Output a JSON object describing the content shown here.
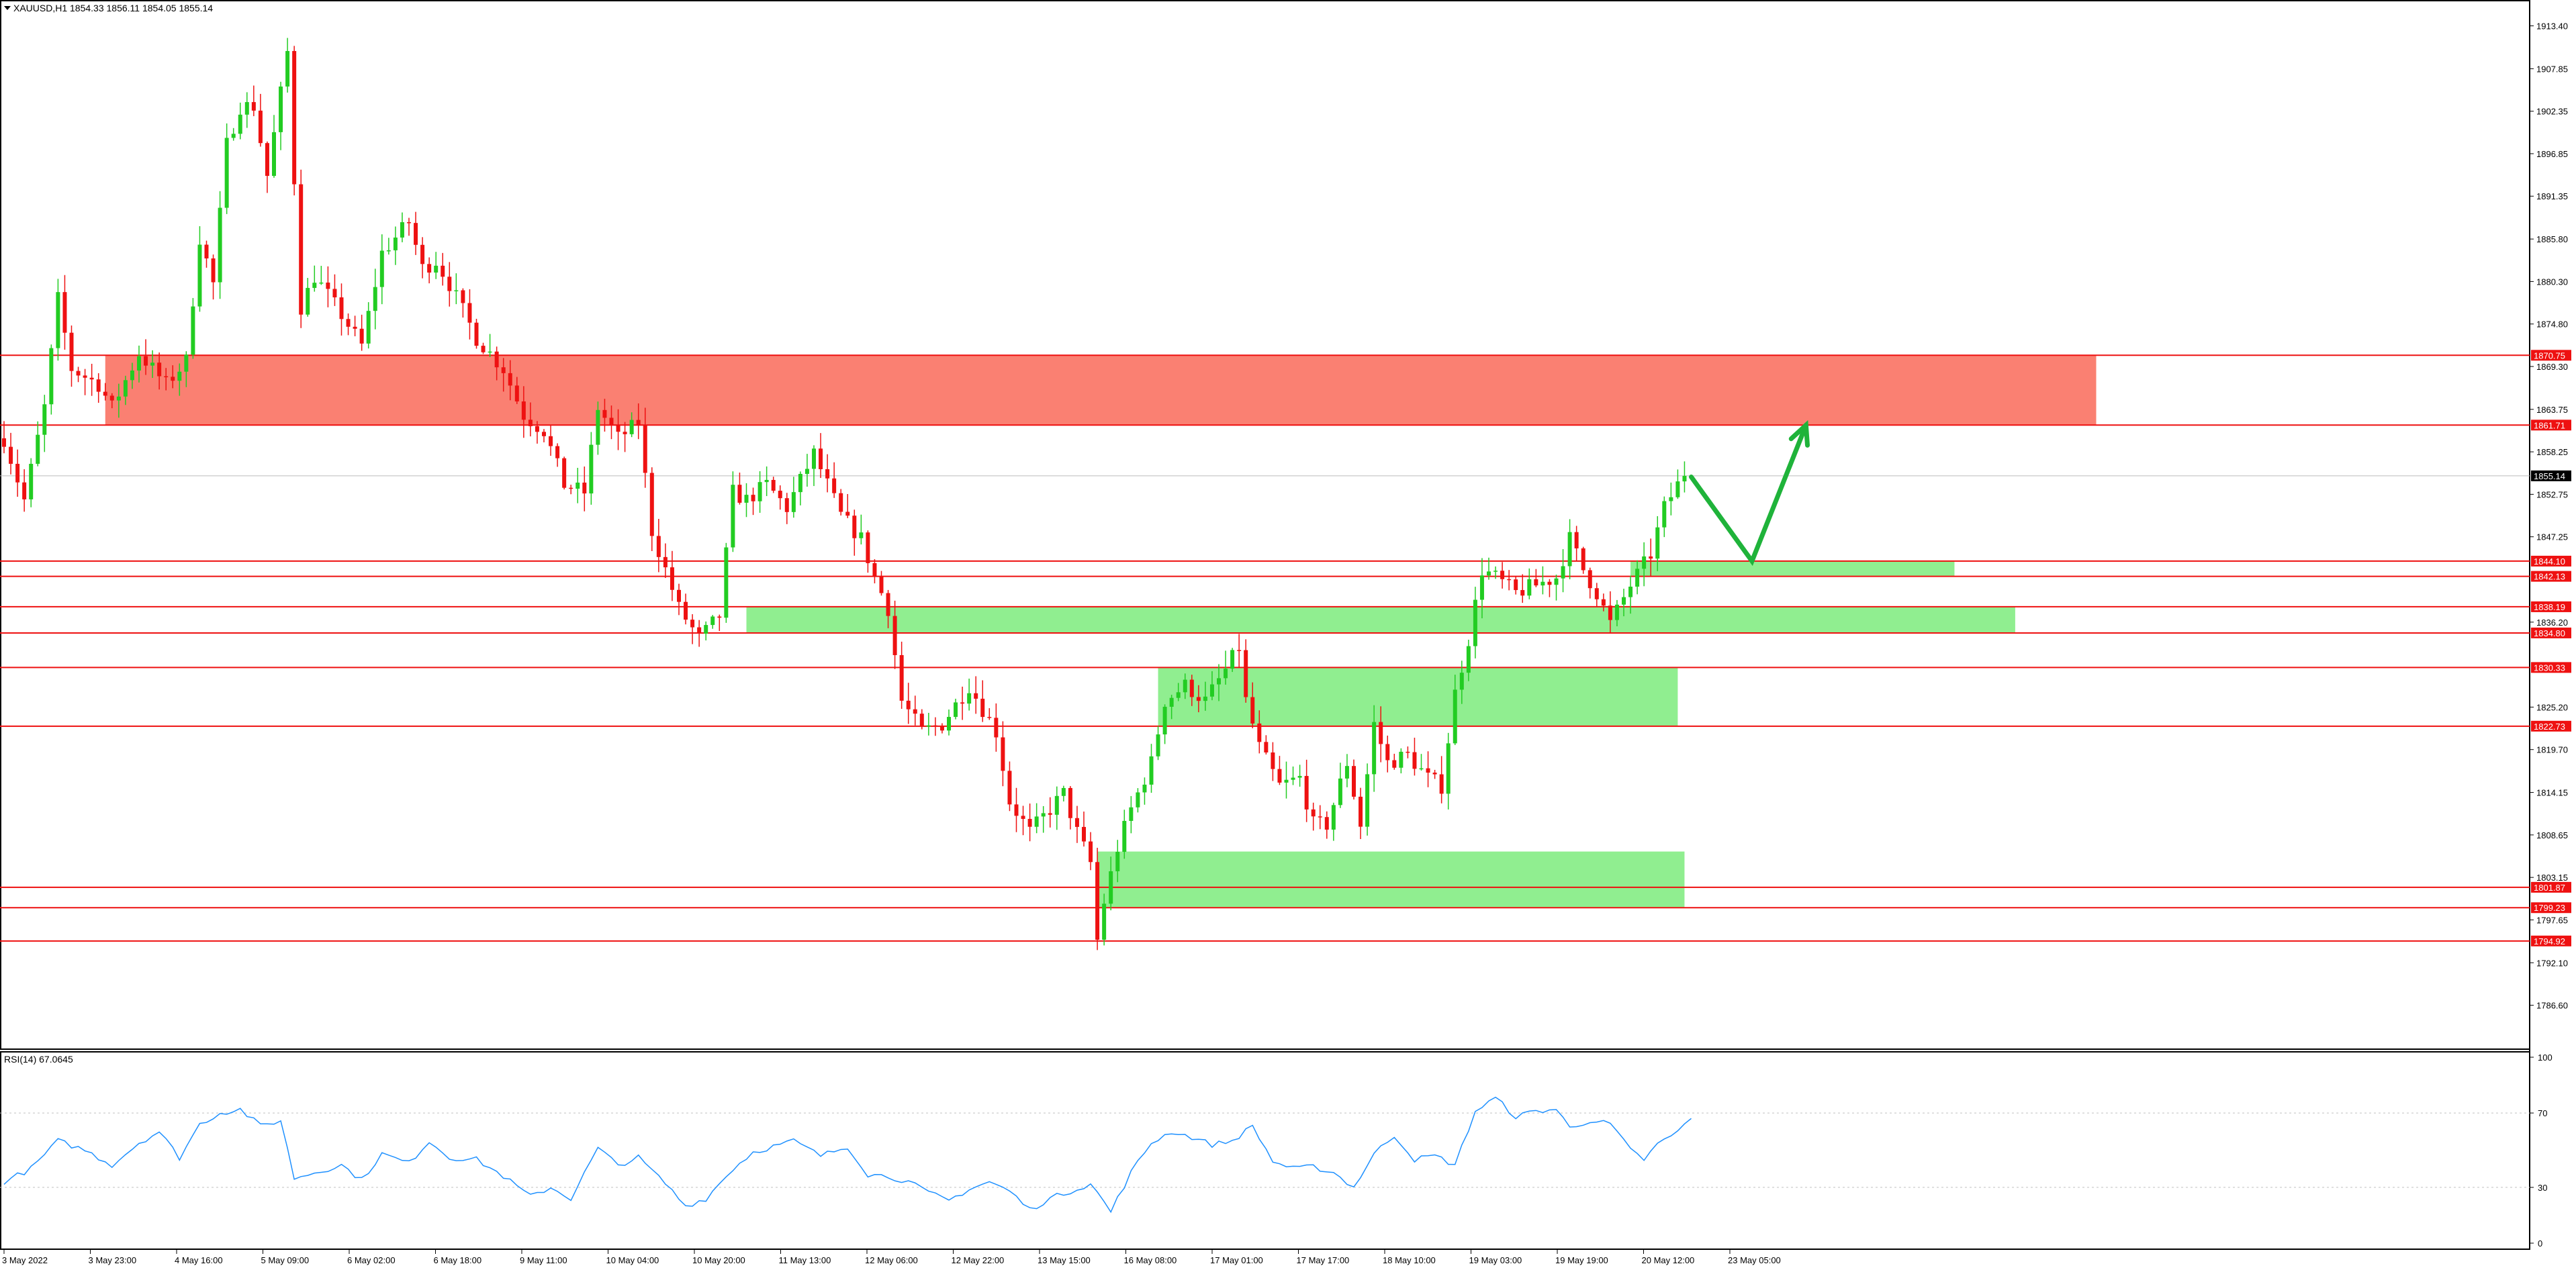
{
  "symbol_header": "XAUUSD,H1  1854.33 1856.11 1854.05 1855.14",
  "rsi_header": "RSI(14) 67.0645",
  "colors": {
    "bull": "#22cc22",
    "bear": "#ee1111",
    "resistance_zone": "#fa8072",
    "support_zone": "#90ee90",
    "level_line": "#ee1111",
    "arrow": "#1fb33a",
    "rsi_line": "#1e90ff",
    "price_tag_bg": "#ee1111",
    "current_tag_bg": "#000000"
  },
  "chart_data": [
    {
      "type": "candlestick",
      "title": "XAUUSD,H1",
      "ylim": [
        1781.0,
        1916.4
      ],
      "x_tick_labels": [
        "3 May 2022",
        "3 May 23:00",
        "4 May 16:00",
        "5 May 09:00",
        "6 May 02:00",
        "6 May 18:00",
        "9 May 11:00",
        "10 May 04:00",
        "10 May 20:00",
        "11 May 13:00",
        "12 May 06:00",
        "12 May 22:00",
        "13 May 15:00",
        "16 May 08:00",
        "17 May 01:00",
        "17 May 17:00",
        "18 May 10:00",
        "19 May 03:00",
        "19 May 19:00",
        "20 May 12:00",
        "23 May 05:00"
      ],
      "y_tick_labels": [
        "1913.40",
        "1907.85",
        "1902.35",
        "1896.85",
        "1891.35",
        "1885.80",
        "1880.30",
        "1874.80",
        "1869.30",
        "1863.75",
        "1858.25",
        "1852.75",
        "1847.25",
        "1836.20",
        "1825.20",
        "1819.70",
        "1814.15",
        "1808.65",
        "1803.15",
        "1797.65",
        "1792.10",
        "1786.60"
      ],
      "y_ticks": [
        1913.4,
        1907.85,
        1902.35,
        1896.85,
        1891.35,
        1885.8,
        1880.3,
        1874.8,
        1869.3,
        1863.75,
        1858.25,
        1852.75,
        1847.25,
        1836.2,
        1825.2,
        1819.7,
        1814.15,
        1808.65,
        1803.15,
        1797.65,
        1792.1,
        1786.6
      ],
      "horizontal_levels": [
        {
          "price": 1870.75,
          "label": "1870.75"
        },
        {
          "price": 1861.71,
          "label": "1861.71"
        },
        {
          "price": 1844.1,
          "label": "1844.10"
        },
        {
          "price": 1842.13,
          "label": "1842.13"
        },
        {
          "price": 1838.19,
          "label": "1838.19"
        },
        {
          "price": 1834.8,
          "label": "1834.80"
        },
        {
          "price": 1830.33,
          "label": "1830.33"
        },
        {
          "price": 1822.73,
          "label": "1822.73"
        },
        {
          "price": 1801.87,
          "label": "1801.87"
        },
        {
          "price": 1799.23,
          "label": "1799.23"
        },
        {
          "price": 1794.92,
          "label": "1794.92"
        }
      ],
      "current_price": {
        "price": 1855.14,
        "label": "1855.14"
      },
      "zones": [
        {
          "kind": "resistance",
          "bar_start": 15,
          "bar_end": 310,
          "low": 1861.71,
          "high": 1870.75
        },
        {
          "kind": "support",
          "bar_start": 241,
          "bar_end": 289,
          "low": 1842.13,
          "high": 1844.1
        },
        {
          "kind": "support",
          "bar_start": 110,
          "bar_end": 298,
          "low": 1834.8,
          "high": 1838.19
        },
        {
          "kind": "support",
          "bar_start": 171,
          "bar_end": 248,
          "low": 1822.73,
          "high": 1830.33
        },
        {
          "kind": "support",
          "bar_start": 162,
          "bar_end": 249,
          "low": 1799.23,
          "high": 1806.5
        }
      ],
      "projection_arrow": [
        {
          "bar": 250,
          "price": 1855.0
        },
        {
          "bar": 259,
          "price": 1844.1
        },
        {
          "bar": 267,
          "price": 1861.7
        }
      ],
      "price_anchors": [
        [
          0,
          1860
        ],
        [
          3,
          1852
        ],
        [
          6,
          1864
        ],
        [
          8,
          1878
        ],
        [
          10,
          1869
        ],
        [
          14,
          1867
        ],
        [
          16,
          1864
        ],
        [
          20,
          1871
        ],
        [
          24,
          1867
        ],
        [
          27,
          1870
        ],
        [
          29,
          1886
        ],
        [
          31,
          1880
        ],
        [
          33,
          1898
        ],
        [
          35,
          1903
        ],
        [
          37,
          1903
        ],
        [
          39,
          1894
        ],
        [
          42,
          1910
        ],
        [
          44,
          1877
        ],
        [
          46,
          1881
        ],
        [
          50,
          1876
        ],
        [
          53,
          1872
        ],
        [
          56,
          1884
        ],
        [
          60,
          1888
        ],
        [
          62,
          1882
        ],
        [
          64,
          1883
        ],
        [
          66,
          1880
        ],
        [
          70,
          1873
        ],
        [
          74,
          1869
        ],
        [
          77,
          1863
        ],
        [
          80,
          1861
        ],
        [
          83,
          1854
        ],
        [
          86,
          1853
        ],
        [
          88,
          1864
        ],
        [
          91,
          1860
        ],
        [
          94,
          1862
        ],
        [
          96,
          1848
        ],
        [
          100,
          1838
        ],
        [
          103,
          1834
        ],
        [
          106,
          1837
        ],
        [
          108,
          1853
        ],
        [
          110,
          1852
        ],
        [
          113,
          1854
        ],
        [
          116,
          1851
        ],
        [
          120,
          1858
        ],
        [
          124,
          1850
        ],
        [
          127,
          1847
        ],
        [
          129,
          1842
        ],
        [
          131,
          1838
        ],
        [
          133,
          1826
        ],
        [
          136,
          1822
        ],
        [
          139,
          1823
        ],
        [
          143,
          1828
        ],
        [
          145,
          1825
        ],
        [
          147,
          1822
        ],
        [
          149,
          1813
        ],
        [
          152,
          1809
        ],
        [
          154,
          1811
        ],
        [
          157,
          1814
        ],
        [
          159,
          1809
        ],
        [
          161,
          1805
        ],
        [
          162,
          1795
        ],
        [
          163,
          1800
        ],
        [
          165,
          1807
        ],
        [
          167,
          1812
        ],
        [
          170,
          1818
        ],
        [
          172,
          1826
        ],
        [
          175,
          1828
        ],
        [
          178,
          1826
        ],
        [
          181,
          1830
        ],
        [
          183,
          1833
        ],
        [
          184,
          1826
        ],
        [
          186,
          1820
        ],
        [
          189,
          1815
        ],
        [
          192,
          1816
        ],
        [
          194,
          1810
        ],
        [
          196,
          1810
        ],
        [
          199,
          1818
        ],
        [
          201,
          1810
        ],
        [
          203,
          1823
        ],
        [
          205,
          1818
        ],
        [
          208,
          1819
        ],
        [
          211,
          1816
        ],
        [
          213,
          1815
        ],
        [
          215,
          1827
        ],
        [
          217,
          1834
        ],
        [
          219,
          1843
        ],
        [
          221,
          1842
        ],
        [
          224,
          1840
        ],
        [
          227,
          1841
        ],
        [
          230,
          1842
        ],
        [
          232,
          1847
        ],
        [
          234,
          1843
        ],
        [
          236,
          1840
        ],
        [
          238,
          1836
        ],
        [
          241,
          1841
        ],
        [
          244,
          1845
        ],
        [
          246,
          1851
        ],
        [
          248,
          1854
        ],
        [
          249,
          1855.14
        ]
      ]
    },
    {
      "type": "line",
      "title": "RSI(14) 67.0645",
      "ylim": [
        0,
        100
      ],
      "y_tick_labels": [
        "100",
        "70",
        "30",
        "0"
      ],
      "y_ticks": [
        100,
        70,
        30,
        0
      ],
      "dashed_levels": [
        70,
        30
      ],
      "value_anchors": [
        [
          0,
          33
        ],
        [
          4,
          40
        ],
        [
          8,
          55
        ],
        [
          12,
          50
        ],
        [
          16,
          42
        ],
        [
          20,
          54
        ],
        [
          23,
          60
        ],
        [
          26,
          46
        ],
        [
          29,
          64
        ],
        [
          32,
          70
        ],
        [
          35,
          72
        ],
        [
          38,
          63
        ],
        [
          41,
          66
        ],
        [
          43,
          35
        ],
        [
          46,
          38
        ],
        [
          50,
          42
        ],
        [
          53,
          34
        ],
        [
          56,
          48
        ],
        [
          60,
          43
        ],
        [
          63,
          55
        ],
        [
          66,
          46
        ],
        [
          70,
          45
        ],
        [
          74,
          36
        ],
        [
          78,
          25
        ],
        [
          81,
          30
        ],
        [
          84,
          24
        ],
        [
          88,
          51
        ],
        [
          91,
          42
        ],
        [
          94,
          46
        ],
        [
          98,
          32
        ],
        [
          101,
          20
        ],
        [
          104,
          24
        ],
        [
          108,
          40
        ],
        [
          111,
          49
        ],
        [
          114,
          52
        ],
        [
          117,
          55
        ],
        [
          121,
          47
        ],
        [
          125,
          52
        ],
        [
          128,
          37
        ],
        [
          131,
          36
        ],
        [
          134,
          33
        ],
        [
          137,
          27
        ],
        [
          140,
          23
        ],
        [
          143,
          29
        ],
        [
          146,
          33
        ],
        [
          149,
          28
        ],
        [
          152,
          18
        ],
        [
          155,
          24
        ],
        [
          158,
          28
        ],
        [
          161,
          32
        ],
        [
          164,
          17
        ],
        [
          167,
          38
        ],
        [
          170,
          54
        ],
        [
          173,
          60
        ],
        [
          176,
          57
        ],
        [
          179,
          53
        ],
        [
          182,
          55
        ],
        [
          185,
          63
        ],
        [
          188,
          44
        ],
        [
          191,
          40
        ],
        [
          194,
          41
        ],
        [
          197,
          38
        ],
        [
          200,
          30
        ],
        [
          203,
          48
        ],
        [
          206,
          58
        ],
        [
          209,
          45
        ],
        [
          212,
          47
        ],
        [
          215,
          42
        ],
        [
          218,
          71
        ],
        [
          221,
          78
        ],
        [
          224,
          68
        ],
        [
          227,
          71
        ],
        [
          230,
          72
        ],
        [
          232,
          62
        ],
        [
          235,
          66
        ],
        [
          238,
          64
        ],
        [
          241,
          50
        ],
        [
          243,
          45
        ],
        [
          245,
          53
        ],
        [
          248,
          60
        ],
        [
          250,
          67.06
        ]
      ]
    }
  ]
}
